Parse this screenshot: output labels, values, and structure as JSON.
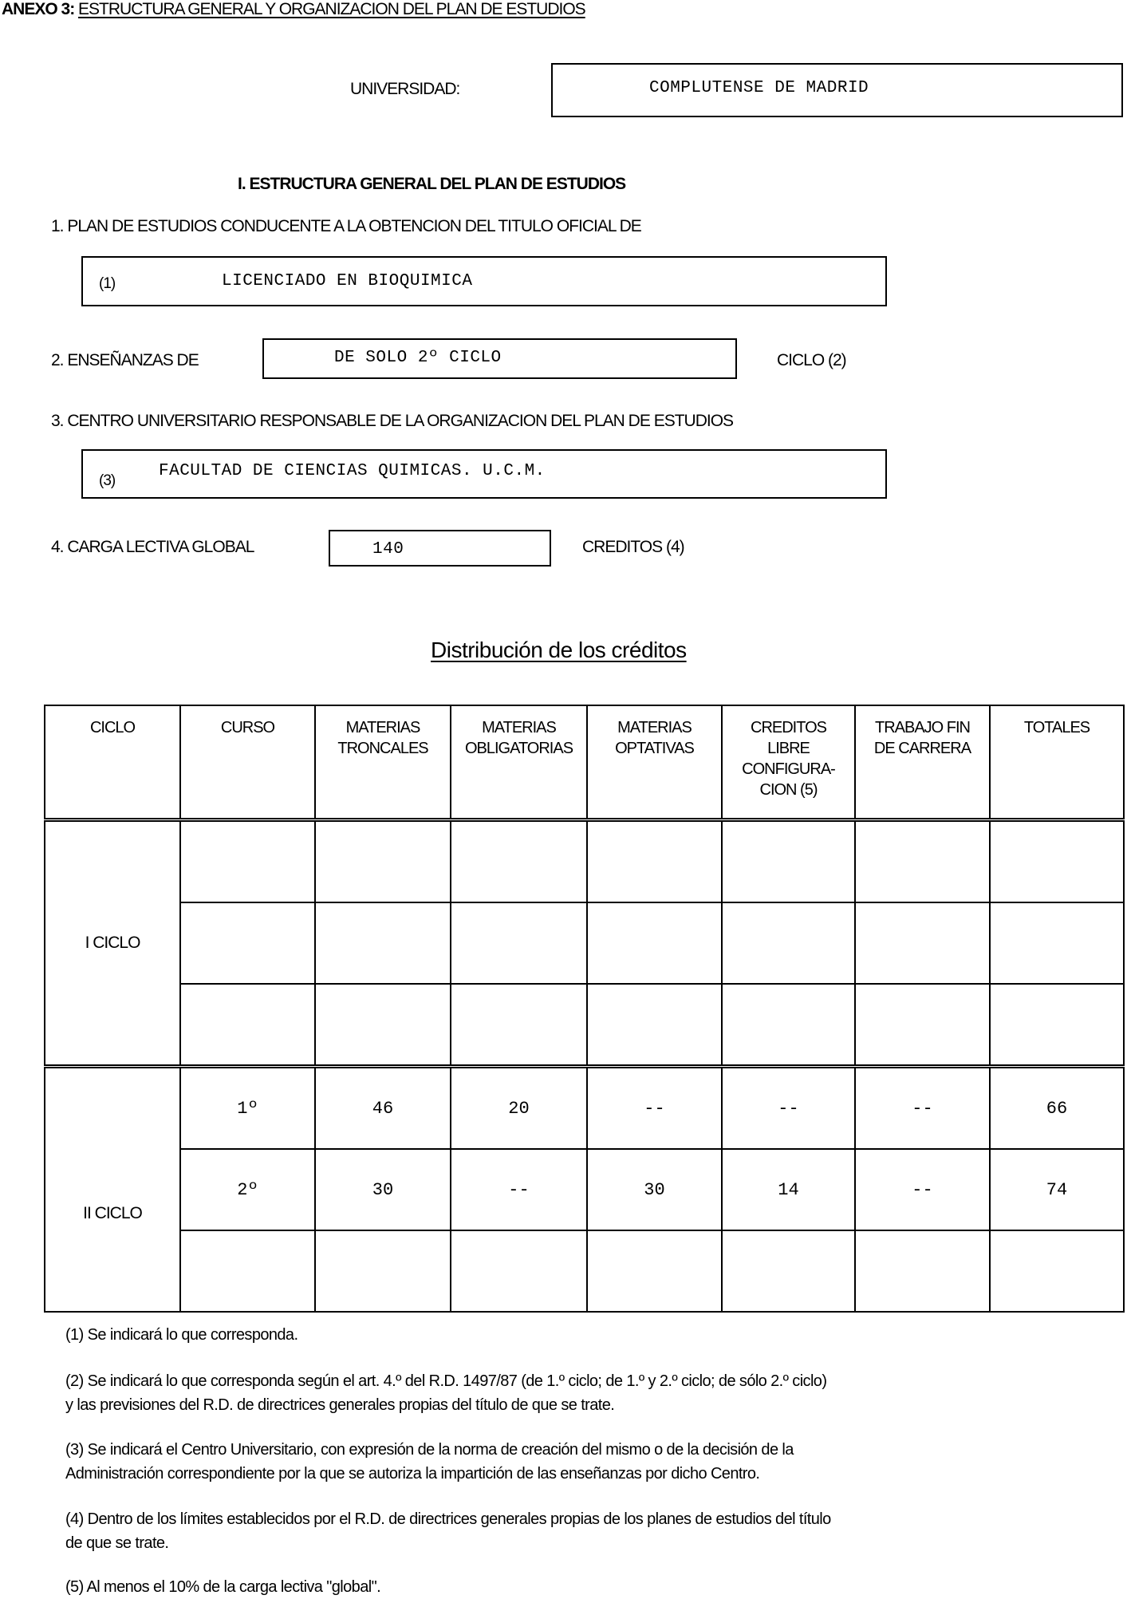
{
  "header": {
    "annex_label": "ANEXO 3:",
    "annex_title": "ESTRUCTURA GENERAL Y ORGANIZACION DEL PLAN DE ESTUDIOS"
  },
  "university": {
    "label": "UNIVERSIDAD:",
    "value": "COMPLUTENSE DE MADRID"
  },
  "section_title": "I. ESTRUCTURA GENERAL DEL PLAN DE ESTUDIOS",
  "item1": {
    "label": "1.  PLAN DE ESTUDIOS CONDUCENTE A LA OBTENCION DEL TITULO OFICIAL DE",
    "note": "(1)",
    "value": "LICENCIADO EN BIOQUIMICA"
  },
  "item2": {
    "label": "2.  ENSEÑANZAS DE",
    "value": "DE SOLO 2º CICLO",
    "suffix": "CICLO (2)"
  },
  "item3": {
    "label": "3.  CENTRO UNIVERSITARIO RESPONSABLE DE LA ORGANIZACION DEL PLAN DE ESTUDIOS",
    "note": "(3)",
    "value": "FACULTAD DE CIENCIAS QUIMICAS. U.C.M."
  },
  "item4": {
    "label": "4.  CARGA LECTIVA GLOBAL",
    "value": "140",
    "suffix": "CREDITOS (4)"
  },
  "distribution": {
    "title": "Distribución de los créditos",
    "headers": [
      [
        "CICLO"
      ],
      [
        "CURSO"
      ],
      [
        "MATERIAS",
        "TRONCALES"
      ],
      [
        "MATERIAS",
        "OBLIGATORIAS"
      ],
      [
        "MATERIAS",
        "OPTATIVAS"
      ],
      [
        "CREDITOS",
        "LIBRE",
        "CONFIGURA-",
        "CION (5)"
      ],
      [
        "TRABAJO FIN",
        "DE CARRERA"
      ],
      [
        "TOTALES"
      ]
    ],
    "cycles": [
      {
        "name": "I CICLO",
        "rows": [
          [
            "",
            "",
            "",
            "",
            "",
            "",
            ""
          ],
          [
            "",
            "",
            "",
            "",
            "",
            "",
            ""
          ],
          [
            "",
            "",
            "",
            "",
            "",
            "",
            ""
          ]
        ]
      },
      {
        "name": "II CICLO",
        "rows": [
          [
            "1º",
            "46",
            "20",
            "--",
            "--",
            "--",
            "66"
          ],
          [
            "2º",
            "30",
            "--",
            "30",
            "14",
            "--",
            "74"
          ],
          [
            "",
            "",
            "",
            "",
            "",
            "",
            ""
          ]
        ]
      }
    ]
  },
  "footnotes": [
    [
      "(1)  Se indicará lo que corresponda."
    ],
    [
      "(2)  Se indicará lo que corresponda según el art. 4.º del R.D. 1497/87 (de 1.º ciclo; de 1.º y 2.º ciclo; de sólo 2.º ciclo)",
      "y las previsiones del R.D. de directrices generales propias del título de que se trate."
    ],
    [
      "(3)  Se indicará el Centro Universitario, con expresión de la norma de creación del mismo o de la decisión de la",
      "Administración correspondiente por la que se autoriza la impartición de las enseñanzas por dicho Centro."
    ],
    [
      "(4)  Dentro de los límites establecidos por el R.D. de directrices generales propias de los planes de estudios del título",
      "de que se trate."
    ],
    [
      "(5)  Al menos el 10% de la carga lectiva \"global\"."
    ]
  ]
}
